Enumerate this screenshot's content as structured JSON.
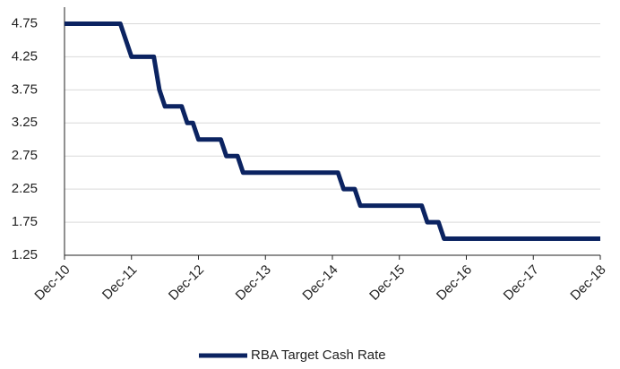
{
  "chart_data": {
    "type": "line",
    "x": [
      "Dec-10",
      "Oct-11",
      "Dec-11",
      "Apr-12",
      "May-12",
      "Jun-12",
      "Sep-12",
      "Oct-12",
      "Nov-12",
      "Dec-12",
      "Apr-13",
      "May-13",
      "Jul-13",
      "Aug-13",
      "Jan-15",
      "Feb-15",
      "Apr-15",
      "May-15",
      "Apr-16",
      "May-16",
      "Jul-16",
      "Aug-16",
      "Dec-18"
    ],
    "series": [
      {
        "name": "RBA Target Cash Rate",
        "color": "#0b2361",
        "values": [
          4.75,
          4.75,
          4.25,
          4.25,
          3.75,
          3.5,
          3.5,
          3.25,
          3.25,
          3.0,
          3.0,
          2.75,
          2.75,
          2.5,
          2.5,
          2.25,
          2.25,
          2.0,
          2.0,
          1.75,
          1.75,
          1.5,
          1.5
        ]
      }
    ],
    "xlim": [
      "Dec-10",
      "Dec-18"
    ],
    "xticks": [
      "Dec-10",
      "Dec-11",
      "Dec-12",
      "Dec-13",
      "Dec-14",
      "Dec-15",
      "Dec-16",
      "Dec-17",
      "Dec-18"
    ],
    "ylim": [
      1.25,
      5
    ],
    "yticks": [
      1.25,
      1.75,
      2.25,
      2.75,
      3.25,
      3.75,
      4.25,
      4.75
    ],
    "grid": true,
    "legend": "bottom"
  }
}
